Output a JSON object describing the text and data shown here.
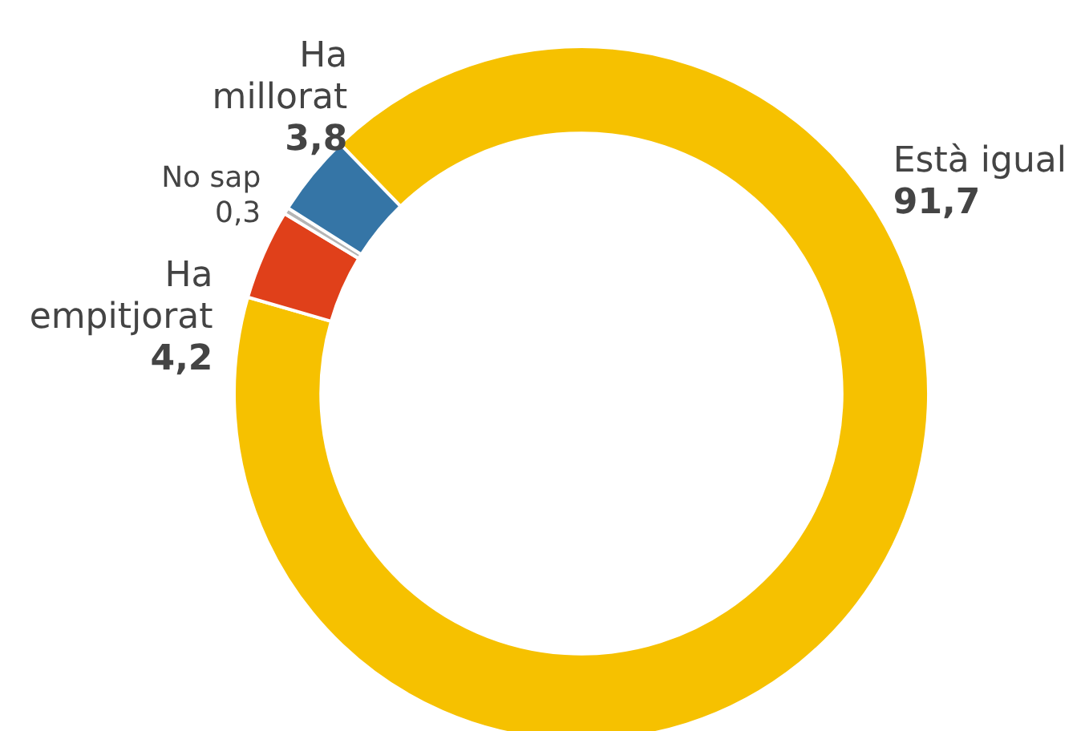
{
  "chart_data": {
    "type": "donut",
    "categories": [
      "Està igual",
      "Ha empitjorat",
      "No sap",
      "Ha millorat"
    ],
    "values": [
      91.7,
      4.2,
      0.3,
      3.8
    ],
    "value_labels": [
      "91,7",
      "4,2",
      "0,3",
      "3,8"
    ],
    "colors": [
      "#f6c100",
      "#e0401a",
      "#b5b5b5",
      "#3575a6"
    ],
    "legend": false
  }
}
